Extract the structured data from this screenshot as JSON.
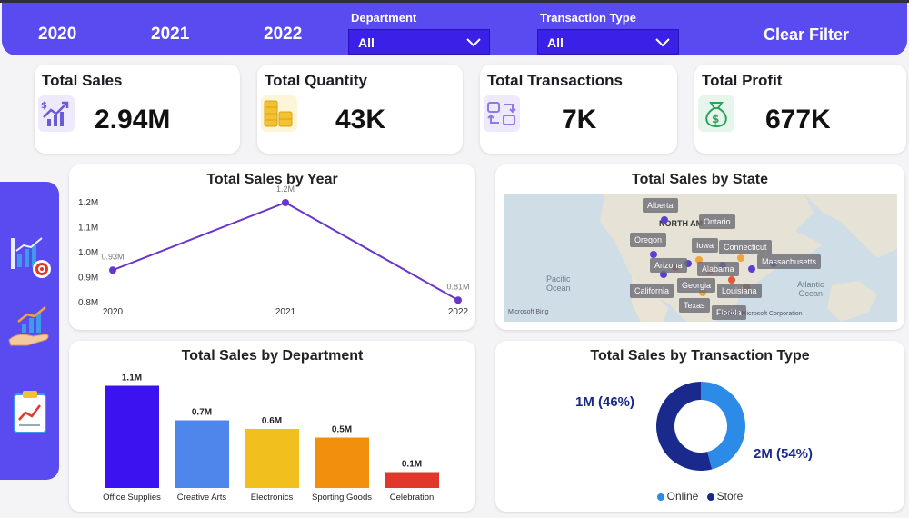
{
  "filters": {
    "years": [
      "2020",
      "2021",
      "2022"
    ],
    "department": {
      "label": "Department",
      "value": "All"
    },
    "transaction_type": {
      "label": "Transaction Type",
      "value": "All"
    },
    "clear_label": "Clear Filter"
  },
  "kpis": [
    {
      "title": "Total Sales",
      "value": "2.94M",
      "icon": "sales-growth-icon",
      "color": "#6b5bd6"
    },
    {
      "title": "Total Quantity",
      "value": "43K",
      "icon": "coin-stack-icon",
      "color": "#f2c230"
    },
    {
      "title": "Total Transactions",
      "value": "7K",
      "icon": "transaction-icon",
      "color": "#8e7be0"
    },
    {
      "title": "Total Profit",
      "value": "677K",
      "icon": "money-bag-icon",
      "color": "#2aa35a"
    }
  ],
  "sidebar": {
    "icons": [
      "analytics-target-icon",
      "hand-growth-icon",
      "report-clipboard-icon"
    ]
  },
  "map": {
    "title": "Total Sales by State",
    "region_label": "NORTH AM",
    "ocean_labels": [
      "Pacific\nOcean",
      "Atlantic\nOcean"
    ],
    "states": [
      "Alberta",
      "Ontario",
      "Oregon",
      "Iowa",
      "Connecticut",
      "Arizona",
      "Alabama",
      "Massachusetts",
      "Georgia",
      "California",
      "Louisiana",
      "Texas",
      "Florida"
    ],
    "attribution": "Microsoft Bing",
    "copyright": "© 2023 Microsoft Corporation"
  },
  "chart_data": [
    {
      "type": "line",
      "title": "Total Sales by Year",
      "x": [
        "2020",
        "2021",
        "2022"
      ],
      "y": [
        0.93,
        1.2,
        0.81
      ],
      "data_labels": [
        "0.93M",
        "1.2M",
        "0.81M"
      ],
      "yticks": [
        "0.8M",
        "0.9M",
        "1.0M",
        "1.1M",
        "1.2M"
      ],
      "ylim": [
        0.8,
        1.2
      ],
      "color": "#6a35c9"
    },
    {
      "type": "bar",
      "title": "Total Sales by Department",
      "categories": [
        "Office Supplies",
        "Creative Arts",
        "Electronics",
        "Sporting Goods",
        "Celebration"
      ],
      "values": [
        1.1,
        0.7,
        0.6,
        0.5,
        0.1
      ],
      "data_labels": [
        "1.1M",
        "0.7M",
        "0.6M",
        "0.5M",
        "0.1M"
      ],
      "colors": [
        "#3d12f0",
        "#4f86ec",
        "#f2c01e",
        "#f2900e",
        "#e0392b"
      ],
      "ylim": [
        0,
        1.2
      ]
    },
    {
      "type": "pie",
      "title": "Total Sales by Transaction Type",
      "categories": [
        "Online",
        "Store"
      ],
      "values": [
        46,
        54
      ],
      "data_labels": [
        "1M (46%)",
        "2M (54%)"
      ],
      "colors": [
        "#2b8be6",
        "#1a2a8c"
      ],
      "legend": "bottom"
    }
  ]
}
